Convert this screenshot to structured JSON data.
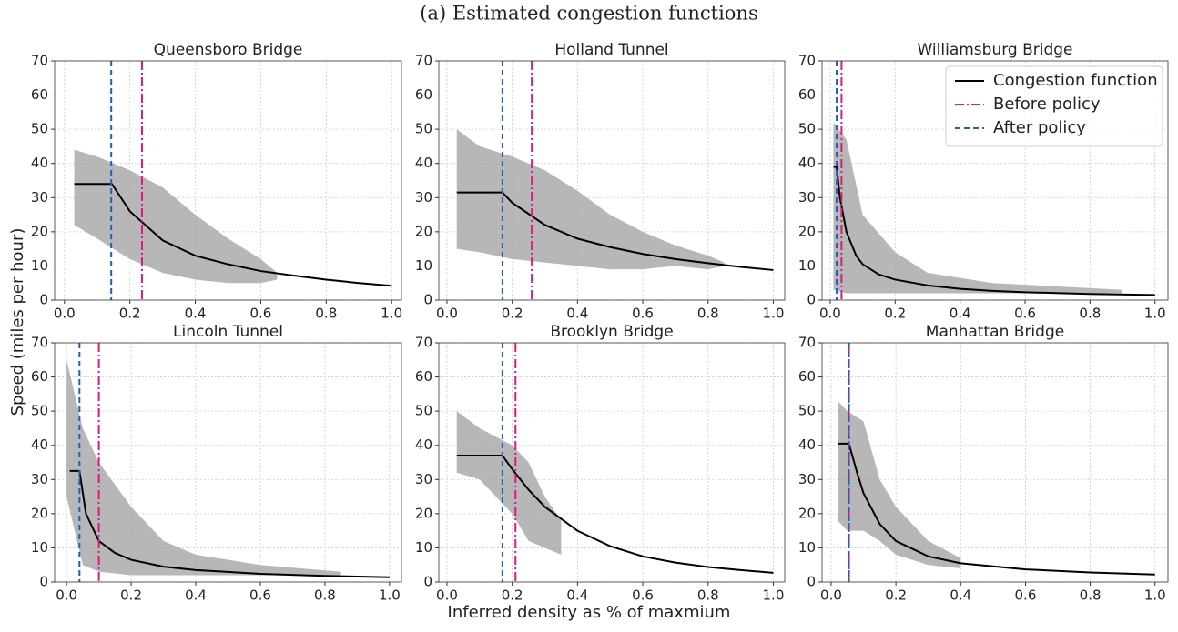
{
  "title": "(a) Estimated congestion functions",
  "xlabel": "Inferred density as % of maxmium",
  "ylabel": "Speed (miles per hour)",
  "legend": {
    "entries": [
      {
        "name": "Congestion function",
        "color": "#000000",
        "dash": "solid"
      },
      {
        "name": "Before policy",
        "color": "#e0187a",
        "dash": "dashdot"
      },
      {
        "name": "After policy",
        "color": "#1f5fbf",
        "dash": "dashed"
      }
    ]
  },
  "chart_data": [
    {
      "type": "line",
      "title": "Queensboro Bridge",
      "xlim": [
        -0.03,
        1.03
      ],
      "ylim": [
        0,
        70
      ],
      "xticks": [
        {
          "value": 0,
          "label": "0.0"
        },
        0.2,
        0.4,
        0.6,
        0.8,
        {
          "value": 1,
          "label": "1.0"
        }
      ],
      "yticks": [
        0,
        10,
        20,
        30,
        40,
        50,
        60,
        70
      ],
      "grid": true,
      "x": [
        0.03,
        0.145,
        0.2,
        0.3,
        0.4,
        0.5,
        0.6,
        0.7,
        0.8,
        0.9,
        1.0
      ],
      "values": [
        34,
        34,
        26,
        17.5,
        13,
        10.5,
        8.5,
        7.2,
        6,
        5,
        4.2
      ],
      "before_policy": 0.237,
      "after_policy": 0.143,
      "cloud": {
        "color": "#aaaaaa",
        "x": [
          0.03,
          0.1,
          0.2,
          0.3,
          0.4,
          0.5,
          0.6,
          0.65
        ],
        "upper": [
          44,
          42,
          38,
          33,
          25,
          18,
          12,
          8
        ],
        "lower": [
          22,
          18,
          12,
          8,
          6,
          5,
          5,
          6
        ]
      }
    },
    {
      "type": "line",
      "title": "Holland Tunnel",
      "xlim": [
        -0.025,
        1.035
      ],
      "ylim": [
        0,
        70
      ],
      "xticks": [
        {
          "value": 0,
          "label": "0.0"
        },
        0.2,
        0.4,
        0.6,
        0.8,
        {
          "value": 1,
          "label": "1.0"
        }
      ],
      "yticks": [
        0,
        10,
        20,
        30,
        40,
        50,
        60,
        70
      ],
      "grid": true,
      "x": [
        0.03,
        0.17,
        0.2,
        0.3,
        0.4,
        0.5,
        0.6,
        0.7,
        0.8,
        0.9,
        1.0
      ],
      "values": [
        31.5,
        31.5,
        28.5,
        22,
        18,
        15.5,
        13.5,
        12,
        10.8,
        9.7,
        8.8
      ],
      "before_policy": 0.26,
      "after_policy": 0.17,
      "cloud": {
        "color": "#aaaaaa",
        "x": [
          0.03,
          0.1,
          0.2,
          0.3,
          0.4,
          0.5,
          0.6,
          0.7,
          0.8,
          0.85
        ],
        "upper": [
          50,
          45,
          42,
          38,
          32,
          25,
          20,
          16,
          13,
          11
        ],
        "lower": [
          15,
          14,
          12,
          11,
          10,
          9,
          9,
          10,
          9,
          10
        ]
      }
    },
    {
      "type": "line",
      "title": "Williamsburg Bridge",
      "xlim": [
        -0.025,
        1.04
      ],
      "ylim": [
        0,
        70
      ],
      "legend": "upper right",
      "xticks": [
        {
          "value": 0,
          "label": "0.0"
        },
        0.2,
        0.4,
        0.6,
        0.8,
        {
          "value": 1,
          "label": "1.0"
        }
      ],
      "yticks": [
        0,
        10,
        20,
        30,
        40,
        50,
        60,
        70
      ],
      "grid": true,
      "x": [
        0.01,
        0.02,
        0.03,
        0.05,
        0.08,
        0.1,
        0.15,
        0.2,
        0.3,
        0.4,
        0.5,
        0.6,
        0.8,
        1.0
      ],
      "values": [
        39,
        39,
        30,
        20,
        13,
        10.5,
        7.5,
        6,
        4.3,
        3.3,
        2.7,
        2.3,
        1.8,
        1.5
      ],
      "before_policy": 0.035,
      "after_policy": 0.02,
      "cloud": {
        "color": "#aaaaaa",
        "x": [
          0.01,
          0.05,
          0.1,
          0.2,
          0.3,
          0.5,
          0.7,
          0.9
        ],
        "upper": [
          52,
          47,
          25,
          14,
          8,
          5,
          4,
          3
        ],
        "lower": [
          3,
          2,
          2,
          2,
          2,
          2,
          2,
          2
        ]
      }
    },
    {
      "type": "line",
      "title": "Lincoln Tunnel",
      "xlim": [
        -0.037,
        1.037
      ],
      "ylim": [
        0,
        70
      ],
      "xticks": [
        {
          "value": 0,
          "label": "0.0"
        },
        0.2,
        0.4,
        0.6,
        0.8,
        {
          "value": 1,
          "label": "1.0"
        }
      ],
      "yticks": [
        0,
        10,
        20,
        30,
        40,
        50,
        60,
        70
      ],
      "grid": true,
      "x": [
        0.01,
        0.04,
        0.06,
        0.1,
        0.15,
        0.2,
        0.3,
        0.4,
        0.6,
        0.8,
        1.0
      ],
      "values": [
        32.5,
        32.5,
        20,
        12,
        8.5,
        6.5,
        4.5,
        3.5,
        2.4,
        1.8,
        1.4
      ],
      "before_policy": 0.1,
      "after_policy": 0.04,
      "cloud": {
        "color": "#aaaaaa",
        "x": [
          0.0,
          0.05,
          0.1,
          0.2,
          0.3,
          0.4,
          0.6,
          0.85
        ],
        "upper": [
          65,
          45,
          35,
          22,
          12,
          8,
          5,
          3
        ],
        "lower": [
          25,
          5,
          3,
          2,
          2,
          2,
          2,
          2
        ]
      }
    },
    {
      "type": "line",
      "title": "Brooklyn Bridge",
      "xlim": [
        -0.025,
        1.035
      ],
      "ylim": [
        0,
        70
      ],
      "xticks": [
        {
          "value": 0,
          "label": "0.0"
        },
        0.2,
        0.4,
        0.6,
        0.8,
        {
          "value": 1,
          "label": "1.0"
        }
      ],
      "yticks": [
        0,
        10,
        20,
        30,
        40,
        50,
        60,
        70
      ],
      "grid": true,
      "x": [
        0.03,
        0.17,
        0.2,
        0.25,
        0.3,
        0.4,
        0.5,
        0.6,
        0.7,
        0.8,
        0.9,
        1.0
      ],
      "values": [
        37,
        37,
        33,
        27,
        22,
        15,
        10.5,
        7.5,
        5.7,
        4.4,
        3.5,
        2.7
      ],
      "before_policy": 0.21,
      "after_policy": 0.17,
      "cloud": {
        "color": "#aaaaaa",
        "x": [
          0.03,
          0.1,
          0.2,
          0.25,
          0.3,
          0.35
        ],
        "upper": [
          50,
          45,
          40,
          35,
          25,
          18
        ],
        "lower": [
          32,
          30,
          20,
          12,
          10,
          8
        ]
      }
    },
    {
      "type": "line",
      "title": "Manhattan Bridge",
      "xlim": [
        -0.028,
        1.04
      ],
      "ylim": [
        0,
        70
      ],
      "xticks": [
        {
          "value": 0,
          "label": "0.0"
        },
        0.2,
        0.4,
        0.6,
        0.8,
        {
          "value": 1,
          "label": "1.0"
        }
      ],
      "yticks": [
        0,
        10,
        20,
        30,
        40,
        50,
        60,
        70
      ],
      "grid": true,
      "x": [
        0.02,
        0.055,
        0.08,
        0.1,
        0.15,
        0.2,
        0.3,
        0.4,
        0.6,
        0.8,
        1.0
      ],
      "values": [
        40.5,
        40.5,
        32,
        26,
        17,
        12,
        7.5,
        5.5,
        3.7,
        2.8,
        2.2
      ],
      "before_policy": 0.055,
      "after_policy": 0.055,
      "cloud": {
        "color": "#aaaaaa",
        "x": [
          0.02,
          0.05,
          0.1,
          0.15,
          0.2,
          0.3,
          0.4
        ],
        "upper": [
          53,
          50,
          47,
          30,
          22,
          12,
          7
        ],
        "lower": [
          18,
          15,
          15,
          12,
          8,
          5,
          4
        ]
      }
    }
  ]
}
